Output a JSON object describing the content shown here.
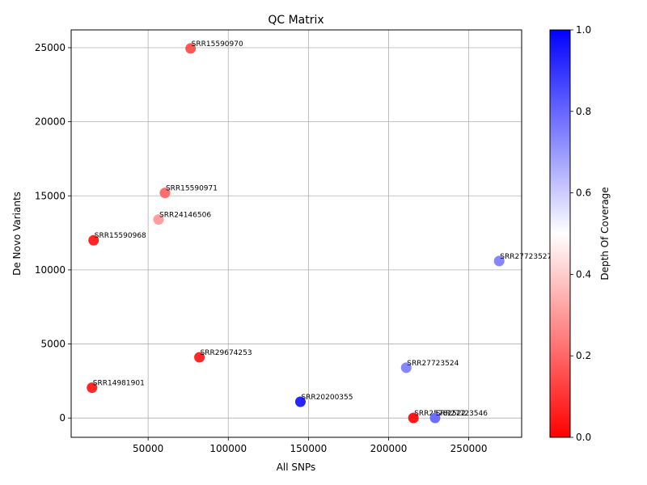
{
  "chart_data": {
    "type": "scatter",
    "title": "QC Matrix",
    "xlabel": "All SNPs",
    "ylabel": "De Novo Variants",
    "xlim": [
      2000,
      283000
    ],
    "ylim": [
      -1300,
      26200
    ],
    "xticks": [
      50000,
      100000,
      150000,
      200000,
      250000
    ],
    "yticks": [
      0,
      5000,
      10000,
      15000,
      20000,
      25000
    ],
    "grid": true,
    "colorbar": {
      "label": "Depth Of Coverage",
      "range": [
        0,
        1
      ],
      "ticks": [
        0.0,
        0.2,
        0.4,
        0.6,
        0.8,
        1.0
      ],
      "colormap": [
        "#ff0000",
        "#ffffff",
        "#0000ff"
      ]
    },
    "points": [
      {
        "label": "SRR15590970",
        "x": 76500,
        "y": 24950,
        "c": 0.15
      },
      {
        "label": "SRR15590971",
        "x": 60500,
        "y": 15200,
        "c": 0.2
      },
      {
        "label": "SRR24146506",
        "x": 56500,
        "y": 13400,
        "c": 0.3
      },
      {
        "label": "SRR15590968",
        "x": 16000,
        "y": 12000,
        "c": 0.05
      },
      {
        "label": "SRR27723527",
        "x": 269000,
        "y": 10600,
        "c": 0.75
      },
      {
        "label": "SRR29674253",
        "x": 82000,
        "y": 4100,
        "c": 0.05
      },
      {
        "label": "SRR27723524",
        "x": 211000,
        "y": 3400,
        "c": 0.75
      },
      {
        "label": "SRR14981901",
        "x": 15000,
        "y": 2050,
        "c": 0.05
      },
      {
        "label": "SRR20200355",
        "x": 145000,
        "y": 1100,
        "c": 0.95
      },
      {
        "label": "SRR25782522",
        "x": 215500,
        "y": 10,
        "c": 0.02
      },
      {
        "label": "SRR27723546",
        "x": 229000,
        "y": 10,
        "c": 0.8
      }
    ]
  }
}
